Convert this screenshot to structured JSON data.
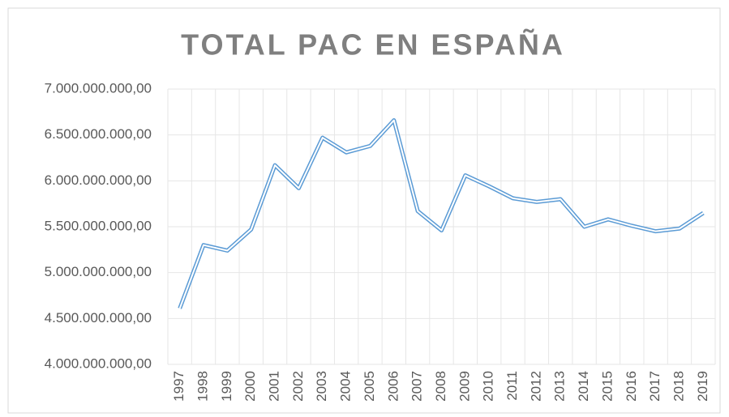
{
  "chart_data": {
    "type": "line",
    "title": "TOTAL PAC EN ESPAÑA",
    "categories": [
      "1997",
      "1998",
      "1999",
      "2000",
      "2001",
      "2002",
      "2003",
      "2004",
      "2005",
      "2006",
      "2007",
      "2008",
      "2009",
      "2010",
      "2011",
      "2012",
      "2013",
      "2014",
      "2015",
      "2016",
      "2017",
      "2018",
      "2019"
    ],
    "series": [
      {
        "name": "TOTAL PAC",
        "color": "#5b9bd5",
        "values": [
          4610000000,
          5300000000,
          5240000000,
          5470000000,
          6170000000,
          5920000000,
          6470000000,
          6310000000,
          6380000000,
          6660000000,
          5670000000,
          5460000000,
          6060000000,
          5940000000,
          5810000000,
          5770000000,
          5800000000,
          5500000000,
          5580000000,
          5510000000,
          5450000000,
          5480000000,
          5650000000
        ]
      }
    ],
    "ylim": [
      4000000000,
      7000000000
    ],
    "yticks": [
      {
        "value": 4000000000,
        "label": "4.000.000.000,00"
      },
      {
        "value": 4500000000,
        "label": "4.500.000.000,00"
      },
      {
        "value": 5000000000,
        "label": "5.000.000.000,00"
      },
      {
        "value": 5500000000,
        "label": "5.500.000.000,00"
      },
      {
        "value": 6000000000,
        "label": "6.000.000.000,00"
      },
      {
        "value": 6500000000,
        "label": "6.500.000.000,00"
      },
      {
        "value": 7000000000,
        "label": "7.000.000.000,00"
      }
    ],
    "grid": true
  }
}
